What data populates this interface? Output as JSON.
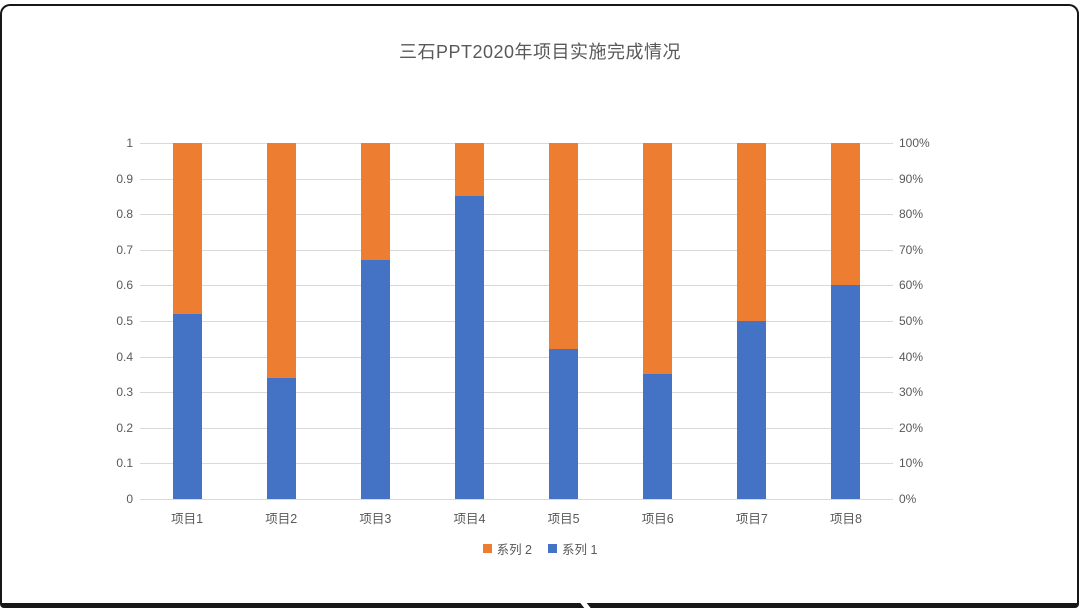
{
  "chart_data": {
    "type": "bar",
    "subtype": "stacked_100_percent_column",
    "title": "三石PPT2020年项目实施完成情况",
    "categories": [
      "项目1",
      "项目2",
      "项目3",
      "项目4",
      "项目5",
      "项目6",
      "项目7",
      "项目8"
    ],
    "series": [
      {
        "name": "系列 1",
        "color": "#4472C4",
        "values": [
          0.52,
          0.34,
          0.67,
          0.85,
          0.42,
          0.35,
          0.5,
          0.6
        ]
      },
      {
        "name": "系列 2",
        "color": "#ED7D31",
        "values": [
          0.48,
          0.66,
          0.33,
          0.15,
          0.58,
          0.65,
          0.5,
          0.4
        ]
      }
    ],
    "left_axis_ticks": [
      "1",
      "0.9",
      "0.8",
      "0.7",
      "0.6",
      "0.5",
      "0.4",
      "0.3",
      "0.2",
      "0.1",
      "0"
    ],
    "right_axis_ticks": [
      "100%",
      "90%",
      "80%",
      "70%",
      "60%",
      "50%",
      "40%",
      "30%",
      "20%",
      "10%",
      "0%"
    ],
    "ylim": [
      0,
      1
    ],
    "grid": true,
    "legend_position": "bottom",
    "legend": [
      {
        "label": "系列 2",
        "color": "#ED7D31"
      },
      {
        "label": "系列 1",
        "color": "#4472C4"
      }
    ]
  },
  "colors": {
    "series1_blue": "#4472C4",
    "series2_orange": "#ED7D31",
    "gridline": "#D9D9D9",
    "axis_text": "#595959",
    "title_text": "#595959",
    "frame": "#171717"
  }
}
